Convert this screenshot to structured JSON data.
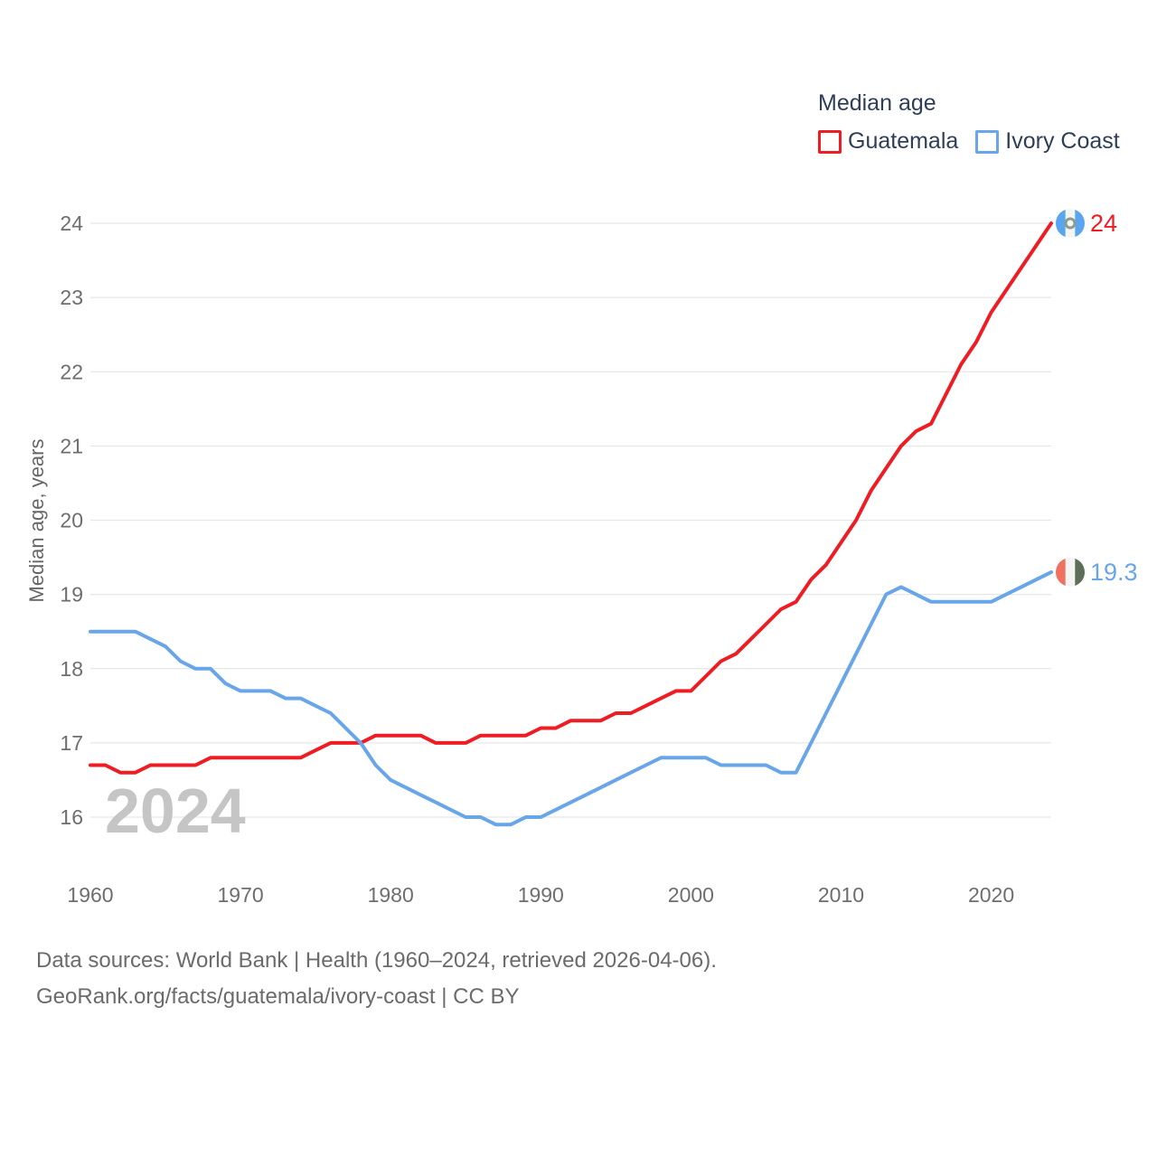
{
  "chart_data": {
    "type": "line",
    "title": "Median age",
    "ylabel": "Median age, years",
    "x_start": 1960,
    "x_end": 2024,
    "x_ticks": [
      1960,
      1970,
      1980,
      1990,
      2000,
      2010,
      2020
    ],
    "y_ticks": [
      16,
      17,
      18,
      19,
      20,
      21,
      22,
      23,
      24
    ],
    "ylim": [
      16,
      24
    ],
    "grid": true,
    "legend_position": "top-right",
    "watermark": "2024",
    "series": [
      {
        "name": "Guatemala",
        "color": "#ee1c23",
        "end_label": "24",
        "flag_stripes": [
          "#5aa5ef",
          "#f4f6f4",
          "#5aa5ef"
        ],
        "flag_emblem": "#8e9b90",
        "values": [
          16.7,
          16.7,
          16.6,
          16.6,
          16.7,
          16.7,
          16.7,
          16.7,
          16.8,
          16.8,
          16.8,
          16.8,
          16.8,
          16.8,
          16.8,
          16.9,
          17.0,
          17.0,
          17.0,
          17.1,
          17.1,
          17.1,
          17.1,
          17.0,
          17.0,
          17.0,
          17.1,
          17.1,
          17.1,
          17.1,
          17.2,
          17.2,
          17.3,
          17.3,
          17.3,
          17.4,
          17.4,
          17.5,
          17.6,
          17.7,
          17.7,
          17.9,
          18.1,
          18.2,
          18.4,
          18.6,
          18.8,
          18.9,
          19.2,
          19.4,
          19.7,
          20.0,
          20.4,
          20.7,
          21.0,
          21.2,
          21.3,
          21.7,
          22.1,
          22.4,
          22.8,
          23.1,
          23.4,
          23.7,
          24.0
        ]
      },
      {
        "name": "Ivory Coast",
        "color": "#68a5e9",
        "end_label": "19.3",
        "flag_stripes": [
          "#ef7160",
          "#f4f4f2",
          "#5d6e59"
        ],
        "flag_emblem": null,
        "values": [
          18.5,
          18.5,
          18.5,
          18.5,
          18.4,
          18.3,
          18.1,
          18.0,
          18.0,
          17.8,
          17.7,
          17.7,
          17.7,
          17.6,
          17.6,
          17.5,
          17.4,
          17.2,
          17.0,
          16.7,
          16.5,
          16.4,
          16.3,
          16.2,
          16.1,
          16.0,
          16.0,
          15.9,
          15.9,
          16.0,
          16.0,
          16.1,
          16.2,
          16.3,
          16.4,
          16.5,
          16.6,
          16.7,
          16.8,
          16.8,
          16.8,
          16.8,
          16.7,
          16.7,
          16.7,
          16.7,
          16.6,
          16.6,
          17.0,
          17.4,
          17.8,
          18.2,
          18.6,
          19.0,
          19.1,
          19.0,
          18.9,
          18.9,
          18.9,
          18.9,
          18.9,
          19.0,
          19.1,
          19.2,
          19.3
        ]
      }
    ],
    "colors": {
      "grid": "#e7e7e7",
      "tick_label": "#6e6e6e",
      "axis_title": "#666666",
      "watermark": "#c5c5c5",
      "legend_text": "#2e3e57"
    }
  },
  "footer": {
    "line1": "Data sources: World Bank | Health (1960–2024, retrieved 2026-04-06).",
    "line2": "GeoRank.org/facts/guatemala/ivory-coast | CC BY"
  }
}
